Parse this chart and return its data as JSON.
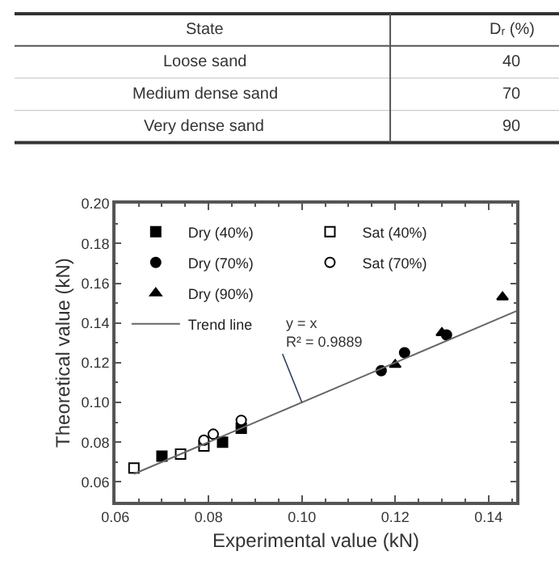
{
  "chart_data": [
    {
      "type": "other",
      "xlabel": "State",
      "ylabel": "Dᵣ (%)",
      "categories": [
        "Loose sand",
        "Medium dense sand",
        "Very dense sand"
      ],
      "values": [
        40,
        70,
        90
      ],
      "data_labels": true
    },
    {
      "type": "scatter",
      "xlabel": "Experimental value (kN)",
      "ylabel": "Theoretical value (kN)",
      "xlim": [
        0.06,
        0.146
      ],
      "xticks": [
        0.06,
        0.08,
        {
          "value": 0.1,
          "label": "0.10"
        },
        0.12,
        0.14
      ],
      "ylim": [
        0.05,
        0.2
      ],
      "yticks": [
        0.06,
        0.08,
        {
          "value": 0.1,
          "label": "0.10"
        },
        0.12,
        0.14,
        0.16,
        0.18,
        {
          "value": 0.2,
          "label": "0.20"
        }
      ],
      "grid": false,
      "legend": "top left",
      "annotations": [
        {
          "text": "y = x\nR² = 0.9889",
          "x": 0.1,
          "y": 0.1
        }
      ],
      "series": [
        {
          "name": "Dry (40%)",
          "marker": "square",
          "color": "#000000",
          "x": [
            0.07,
            0.083,
            0.087
          ],
          "values": [
            0.073,
            0.08,
            0.087
          ]
        },
        {
          "name": "Sat (40%)",
          "marker": "square",
          "color": "#ffffff",
          "x": [
            0.064,
            0.074,
            0.079
          ],
          "values": [
            0.067,
            0.074,
            0.078
          ]
        },
        {
          "name": "Dry (70%)",
          "marker": "circle",
          "color": "#000000",
          "x": [
            0.117,
            0.122,
            0.131
          ],
          "values": [
            0.116,
            0.125,
            0.134
          ]
        },
        {
          "name": "Sat (70%)",
          "marker": "circle",
          "color": "#ffffff",
          "x": [
            0.079,
            0.081,
            0.087
          ],
          "values": [
            0.081,
            0.084,
            0.091
          ]
        },
        {
          "name": "Dry (90%)",
          "marker": "triangle",
          "color": "#000000",
          "x": [
            0.12,
            0.13,
            0.143
          ],
          "values": [
            0.119,
            0.135,
            0.153
          ]
        },
        {
          "name": "Trend line",
          "type": "line",
          "marker": "none",
          "line_style": "solid",
          "color": "#666666",
          "x": [
            0.064,
            0.146
          ],
          "values": [
            0.064,
            0.146
          ]
        }
      ]
    }
  ]
}
